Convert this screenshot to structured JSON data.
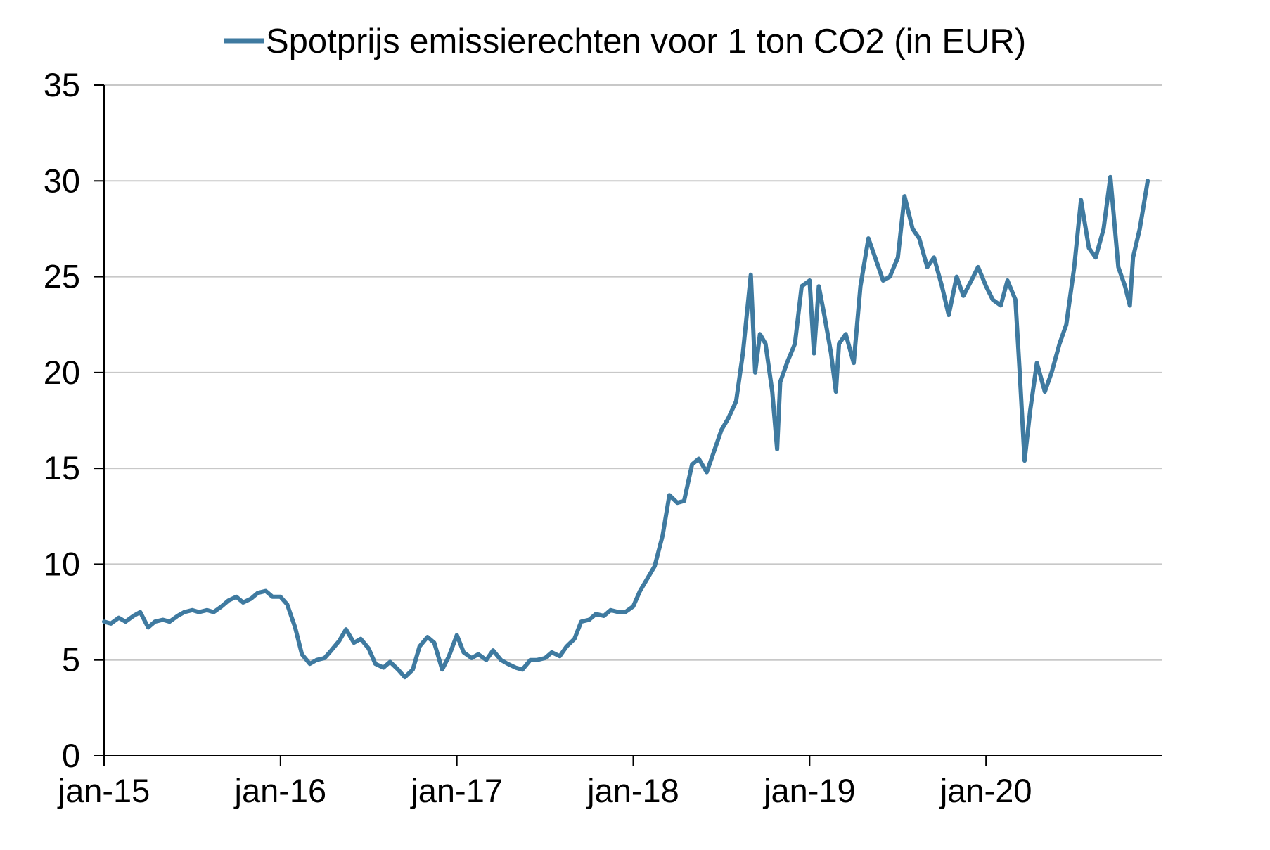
{
  "chart_data": {
    "type": "line",
    "title": "",
    "xlabel": "",
    "ylabel": "",
    "ylim": [
      0,
      35
    ],
    "yticks": [
      0,
      5,
      10,
      15,
      20,
      25,
      30,
      35
    ],
    "xlim": [
      "2015-01",
      "2020-12"
    ],
    "x_tick_labels": [
      {
        "date": "2015-01",
        "label": "jan-15"
      },
      {
        "date": "2016-01",
        "label": "jan-16"
      },
      {
        "date": "2017-01",
        "label": "jan-17"
      },
      {
        "date": "2018-01",
        "label": "jan-18"
      },
      {
        "date": "2019-01",
        "label": "jan-19"
      },
      {
        "date": "2020-01",
        "label": "jan-20"
      }
    ],
    "grid": "horizontal",
    "legend_position": "top",
    "series": [
      {
        "name": "Spotprijs emissierechten voor 1 ton CO2 (in EUR)",
        "color": "#3f7aa0",
        "points": [
          [
            "2015-01-01",
            7.0
          ],
          [
            "2015-01-15",
            6.9
          ],
          [
            "2015-02-01",
            7.2
          ],
          [
            "2015-02-15",
            7.0
          ],
          [
            "2015-03-01",
            7.3
          ],
          [
            "2015-03-15",
            7.5
          ],
          [
            "2015-04-01",
            6.7
          ],
          [
            "2015-04-15",
            7.0
          ],
          [
            "2015-05-01",
            7.1
          ],
          [
            "2015-05-15",
            7.0
          ],
          [
            "2015-06-01",
            7.3
          ],
          [
            "2015-06-15",
            7.5
          ],
          [
            "2015-07-01",
            7.6
          ],
          [
            "2015-07-15",
            7.5
          ],
          [
            "2015-08-01",
            7.6
          ],
          [
            "2015-08-15",
            7.5
          ],
          [
            "2015-09-01",
            7.8
          ],
          [
            "2015-09-15",
            8.1
          ],
          [
            "2015-10-01",
            8.3
          ],
          [
            "2015-10-15",
            8.0
          ],
          [
            "2015-11-01",
            8.2
          ],
          [
            "2015-11-15",
            8.5
          ],
          [
            "2015-12-01",
            8.6
          ],
          [
            "2015-12-15",
            8.3
          ],
          [
            "2016-01-01",
            8.3
          ],
          [
            "2016-01-15",
            7.9
          ],
          [
            "2016-02-01",
            6.7
          ],
          [
            "2016-02-15",
            5.3
          ],
          [
            "2016-03-01",
            4.8
          ],
          [
            "2016-03-15",
            5.0
          ],
          [
            "2016-04-01",
            5.1
          ],
          [
            "2016-04-15",
            5.5
          ],
          [
            "2016-05-01",
            6.0
          ],
          [
            "2016-05-15",
            6.6
          ],
          [
            "2016-06-01",
            5.9
          ],
          [
            "2016-06-15",
            6.1
          ],
          [
            "2016-07-01",
            5.6
          ],
          [
            "2016-07-15",
            4.8
          ],
          [
            "2016-08-01",
            4.6
          ],
          [
            "2016-08-15",
            4.9
          ],
          [
            "2016-09-01",
            4.5
          ],
          [
            "2016-09-15",
            4.1
          ],
          [
            "2016-10-01",
            4.5
          ],
          [
            "2016-10-15",
            5.7
          ],
          [
            "2016-11-01",
            6.2
          ],
          [
            "2016-11-15",
            5.9
          ],
          [
            "2016-12-01",
            4.5
          ],
          [
            "2016-12-15",
            5.2
          ],
          [
            "2017-01-01",
            6.3
          ],
          [
            "2017-01-15",
            5.4
          ],
          [
            "2017-02-01",
            5.1
          ],
          [
            "2017-02-15",
            5.3
          ],
          [
            "2017-03-01",
            5.0
          ],
          [
            "2017-03-15",
            5.5
          ],
          [
            "2017-04-01",
            5.0
          ],
          [
            "2017-04-15",
            4.8
          ],
          [
            "2017-05-01",
            4.6
          ],
          [
            "2017-05-15",
            4.5
          ],
          [
            "2017-06-01",
            5.0
          ],
          [
            "2017-06-15",
            5.0
          ],
          [
            "2017-07-01",
            5.1
          ],
          [
            "2017-07-15",
            5.4
          ],
          [
            "2017-08-01",
            5.2
          ],
          [
            "2017-08-15",
            5.7
          ],
          [
            "2017-09-01",
            6.1
          ],
          [
            "2017-09-15",
            7.0
          ],
          [
            "2017-10-01",
            7.1
          ],
          [
            "2017-10-15",
            7.4
          ],
          [
            "2017-11-01",
            7.3
          ],
          [
            "2017-11-15",
            7.6
          ],
          [
            "2017-12-01",
            7.5
          ],
          [
            "2017-12-15",
            7.5
          ],
          [
            "2018-01-01",
            7.8
          ],
          [
            "2018-01-15",
            8.6
          ],
          [
            "2018-02-01",
            9.3
          ],
          [
            "2018-02-15",
            9.9
          ],
          [
            "2018-03-01",
            11.5
          ],
          [
            "2018-03-15",
            13.6
          ],
          [
            "2018-04-01",
            13.2
          ],
          [
            "2018-04-15",
            13.3
          ],
          [
            "2018-05-01",
            15.2
          ],
          [
            "2018-05-15",
            15.5
          ],
          [
            "2018-06-01",
            14.8
          ],
          [
            "2018-06-15",
            15.8
          ],
          [
            "2018-07-01",
            17.0
          ],
          [
            "2018-07-15",
            17.6
          ],
          [
            "2018-08-01",
            18.5
          ],
          [
            "2018-08-15",
            21.0
          ],
          [
            "2018-09-01",
            25.1
          ],
          [
            "2018-09-10",
            20.0
          ],
          [
            "2018-09-20",
            22.0
          ],
          [
            "2018-10-01",
            21.5
          ],
          [
            "2018-10-15",
            19.0
          ],
          [
            "2018-10-25",
            16.0
          ],
          [
            "2018-11-01",
            19.5
          ],
          [
            "2018-11-15",
            20.5
          ],
          [
            "2018-12-01",
            21.5
          ],
          [
            "2018-12-15",
            24.5
          ],
          [
            "2019-01-01",
            24.8
          ],
          [
            "2019-01-10",
            21.0
          ],
          [
            "2019-01-20",
            24.5
          ],
          [
            "2019-02-01",
            23.0
          ],
          [
            "2019-02-15",
            21.0
          ],
          [
            "2019-02-25",
            19.0
          ],
          [
            "2019-03-01",
            21.5
          ],
          [
            "2019-03-15",
            22.0
          ],
          [
            "2019-04-01",
            20.5
          ],
          [
            "2019-04-15",
            24.5
          ],
          [
            "2019-05-01",
            27.0
          ],
          [
            "2019-05-15",
            26.0
          ],
          [
            "2019-06-01",
            24.8
          ],
          [
            "2019-06-15",
            25.0
          ],
          [
            "2019-07-01",
            26.0
          ],
          [
            "2019-07-15",
            29.2
          ],
          [
            "2019-08-01",
            27.5
          ],
          [
            "2019-08-15",
            27.0
          ],
          [
            "2019-09-01",
            25.5
          ],
          [
            "2019-09-15",
            26.0
          ],
          [
            "2019-10-01",
            24.5
          ],
          [
            "2019-10-15",
            23.0
          ],
          [
            "2019-11-01",
            25.0
          ],
          [
            "2019-11-15",
            24.0
          ],
          [
            "2019-12-01",
            24.8
          ],
          [
            "2019-12-15",
            25.5
          ],
          [
            "2020-01-01",
            24.5
          ],
          [
            "2020-01-15",
            23.8
          ],
          [
            "2020-02-01",
            23.5
          ],
          [
            "2020-02-15",
            24.8
          ],
          [
            "2020-03-01",
            23.8
          ],
          [
            "2020-03-10",
            20.0
          ],
          [
            "2020-03-20",
            15.4
          ],
          [
            "2020-04-01",
            18.0
          ],
          [
            "2020-04-15",
            20.5
          ],
          [
            "2020-05-01",
            19.0
          ],
          [
            "2020-05-15",
            20.0
          ],
          [
            "2020-06-01",
            21.5
          ],
          [
            "2020-06-15",
            22.5
          ],
          [
            "2020-07-01",
            25.5
          ],
          [
            "2020-07-15",
            29.0
          ],
          [
            "2020-08-01",
            26.5
          ],
          [
            "2020-08-15",
            26.0
          ],
          [
            "2020-09-01",
            27.5
          ],
          [
            "2020-09-15",
            30.2
          ],
          [
            "2020-10-01",
            25.5
          ],
          [
            "2020-10-15",
            24.5
          ],
          [
            "2020-10-25",
            23.5
          ],
          [
            "2020-11-01",
            26.0
          ],
          [
            "2020-11-15",
            27.5
          ],
          [
            "2020-12-01",
            30.0
          ]
        ]
      }
    ]
  }
}
